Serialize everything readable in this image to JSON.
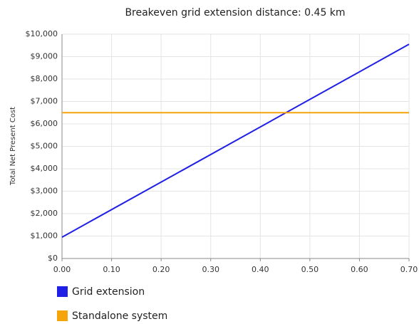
{
  "chart_data": {
    "type": "line",
    "title": "Breakeven grid extension distance: 0.45 km",
    "y_label": "Total Net Present Cost",
    "x": [
      0,
      0.7
    ],
    "series": [
      {
        "name": "Grid extension",
        "color": "#1f1fe6",
        "values": [
          950,
          9550
        ]
      },
      {
        "name": "Standalone system",
        "color": "#f5a40a",
        "values": [
          6500,
          6500
        ]
      }
    ],
    "xlim": [
      0,
      0.7
    ],
    "xticks": [
      {
        "value": 0,
        "label": "0.00"
      },
      {
        "value": 0.1,
        "label": "0.10"
      },
      {
        "value": 0.2,
        "label": "0.20"
      },
      {
        "value": 0.3,
        "label": "0.30"
      },
      {
        "value": 0.4,
        "label": "0.40"
      },
      {
        "value": 0.5,
        "label": "0.50"
      },
      {
        "value": 0.6,
        "label": "0.60"
      },
      {
        "value": 0.7,
        "label": "0.70"
      }
    ],
    "ylim": [
      0,
      10000
    ],
    "yticks": [
      {
        "value": 0,
        "label": "$0"
      },
      {
        "value": 1000,
        "label": "$1,000"
      },
      {
        "value": 2000,
        "label": "$2,000"
      },
      {
        "value": 3000,
        "label": "$3,000"
      },
      {
        "value": 4000,
        "label": "$4,000"
      },
      {
        "value": 5000,
        "label": "$5,000"
      },
      {
        "value": 6000,
        "label": "$6,000"
      },
      {
        "value": 7000,
        "label": "$7,000"
      },
      {
        "value": 8000,
        "label": "$8,000"
      },
      {
        "value": 9000,
        "label": "$9,000"
      },
      {
        "value": 10000,
        "label": "$10,000"
      }
    ],
    "grid": true,
    "legend": "bottom"
  }
}
